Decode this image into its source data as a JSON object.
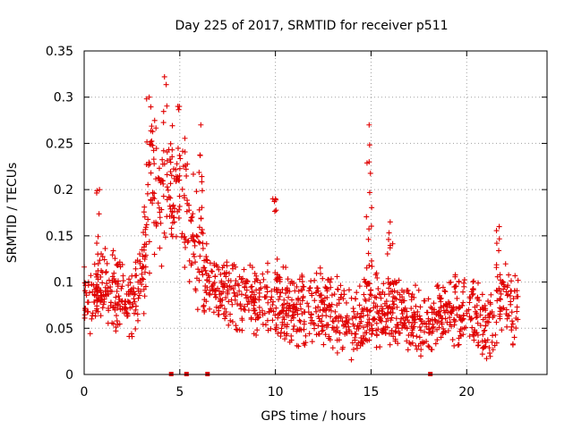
{
  "chart_data": {
    "type": "scatter",
    "title": "Day 225 of 2017, SRMTID for receiver p511",
    "xlabel": "GPS time / hours",
    "ylabel": "SRMTID / TECUs",
    "xlim": [
      0,
      24.2
    ],
    "ylim": [
      0,
      0.35
    ],
    "xticks": [
      0,
      5,
      10,
      15,
      20
    ],
    "yticks": [
      0,
      0.05,
      0.1,
      0.15,
      0.2,
      0.25,
      0.3,
      0.35
    ],
    "xtick_labels": [
      "0",
      "5",
      "10",
      "15",
      "20"
    ],
    "ytick_labels": [
      "0",
      "0.05",
      "0.1",
      "0.15",
      "0.2",
      "0.25",
      "0.3",
      "0.35"
    ],
    "grid": true,
    "marker": "plus",
    "series_color": "#e00000",
    "level_profile": [
      [
        0.0,
        0.075
      ],
      [
        0.5,
        0.085
      ],
      [
        1.0,
        0.1
      ],
      [
        1.5,
        0.09
      ],
      [
        2.0,
        0.08
      ],
      [
        2.5,
        0.075
      ],
      [
        3.0,
        0.1
      ],
      [
        3.5,
        0.2
      ],
      [
        4.0,
        0.2
      ],
      [
        4.5,
        0.19
      ],
      [
        5.0,
        0.19
      ],
      [
        5.5,
        0.16
      ],
      [
        6.0,
        0.12
      ],
      [
        6.5,
        0.1
      ],
      [
        7.0,
        0.09
      ],
      [
        8.0,
        0.085
      ],
      [
        9.0,
        0.08
      ],
      [
        10.0,
        0.08
      ],
      [
        11.0,
        0.07
      ],
      [
        12.0,
        0.075
      ],
      [
        13.0,
        0.07
      ],
      [
        14.0,
        0.05
      ],
      [
        15.0,
        0.065
      ],
      [
        16.0,
        0.075
      ],
      [
        17.0,
        0.06
      ],
      [
        18.0,
        0.05
      ],
      [
        19.0,
        0.07
      ],
      [
        20.0,
        0.07
      ],
      [
        21.0,
        0.05
      ],
      [
        22.0,
        0.085
      ],
      [
        22.8,
        0.06
      ]
    ],
    "spikes": [
      {
        "x": 3.4,
        "y": 0.3
      },
      {
        "x": 4.2,
        "y": 0.322
      },
      {
        "x": 4.9,
        "y": 0.29
      },
      {
        "x": 6.1,
        "y": 0.27
      },
      {
        "x": 0.8,
        "y": 0.2
      },
      {
        "x": 10.0,
        "y": 0.19
      },
      {
        "x": 14.9,
        "y": 0.27
      },
      {
        "x": 14.9,
        "y": 0.23
      },
      {
        "x": 16.0,
        "y": 0.165
      },
      {
        "x": 21.7,
        "y": 0.16
      }
    ],
    "zero_markers_x": [
      4.55,
      5.35,
      6.45,
      18.1
    ]
  }
}
